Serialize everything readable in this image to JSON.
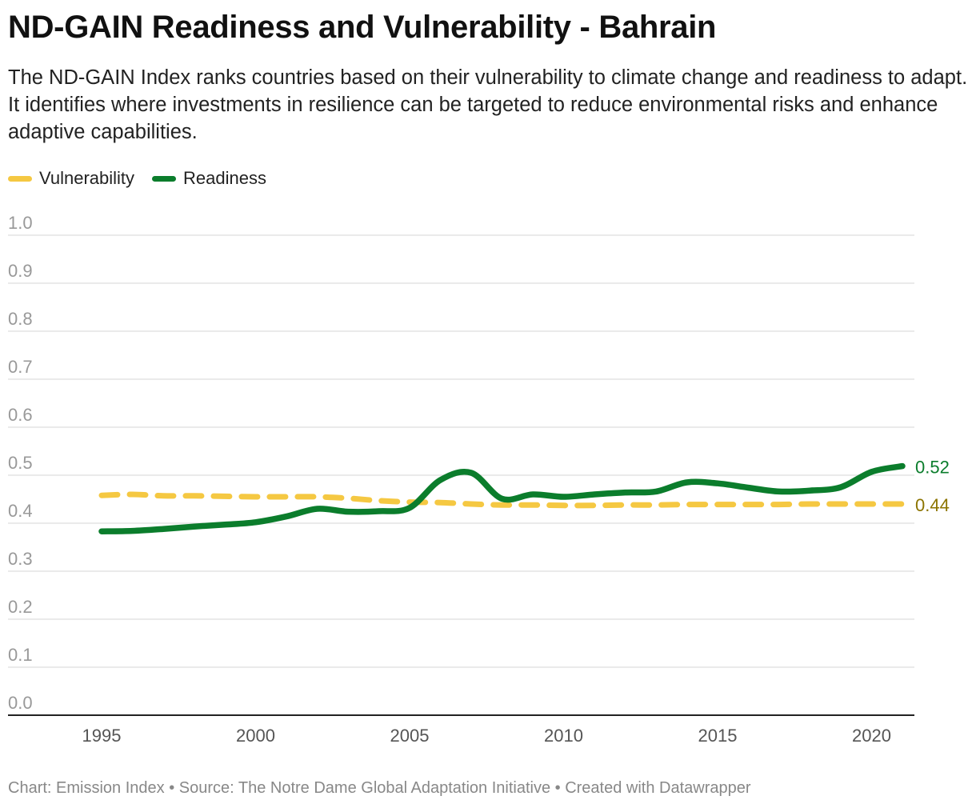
{
  "title": "ND-GAIN Readiness and Vulnerability - Bahrain",
  "subtitle": "The ND-GAIN Index ranks countries based on their vulnerability to climate change and readiness to adapt. It identifies where investments in resilience can be targeted to reduce environmental risks and enhance adaptive capabilities.",
  "footer": "Chart: Emission Index • Source: The Notre Dame Global Adaptation Initiative • Created with Datawrapper",
  "colors": {
    "vulnerability": "#f5c842",
    "readiness": "#0b7d2c",
    "vulnerability_label": "#8c7400",
    "grid": "#dddddd",
    "axis_text": "#999999"
  },
  "legend": [
    {
      "label": "Vulnerability",
      "color": "#f5c842"
    },
    {
      "label": "Readiness",
      "color": "#0b7d2c"
    }
  ],
  "chart_data": {
    "type": "line",
    "title": "ND-GAIN Readiness and Vulnerability - Bahrain",
    "xlabel": "",
    "ylabel": "",
    "ylim": [
      0,
      1.0
    ],
    "xlim": [
      1995,
      2021
    ],
    "yticks": [
      "0.0",
      "0.1",
      "0.2",
      "0.3",
      "0.4",
      "0.5",
      "0.6",
      "0.7",
      "0.8",
      "0.9",
      "1.0"
    ],
    "xticks": [
      "1995",
      "2000",
      "2005",
      "2010",
      "2015",
      "2020"
    ],
    "x": [
      1995,
      1996,
      1997,
      1998,
      1999,
      2000,
      2001,
      2002,
      2003,
      2004,
      2005,
      2006,
      2007,
      2008,
      2009,
      2010,
      2011,
      2012,
      2013,
      2014,
      2015,
      2016,
      2017,
      2018,
      2019,
      2020,
      2021
    ],
    "series": [
      {
        "name": "Vulnerability",
        "style": "dashed",
        "end_label": "0.44",
        "values": [
          0.458,
          0.46,
          0.457,
          0.457,
          0.456,
          0.455,
          0.455,
          0.455,
          0.452,
          0.447,
          0.444,
          0.443,
          0.44,
          0.438,
          0.438,
          0.437,
          0.437,
          0.438,
          0.438,
          0.439,
          0.439,
          0.439,
          0.439,
          0.44,
          0.44,
          0.44,
          0.44
        ]
      },
      {
        "name": "Readiness",
        "style": "solid",
        "end_label": "0.52",
        "values": [
          0.383,
          0.384,
          0.388,
          0.393,
          0.397,
          0.402,
          0.414,
          0.43,
          0.424,
          0.425,
          0.432,
          0.49,
          0.505,
          0.451,
          0.46,
          0.455,
          0.46,
          0.464,
          0.466,
          0.485,
          0.483,
          0.474,
          0.466,
          0.468,
          0.475,
          0.507,
          0.519
        ]
      }
    ]
  }
}
